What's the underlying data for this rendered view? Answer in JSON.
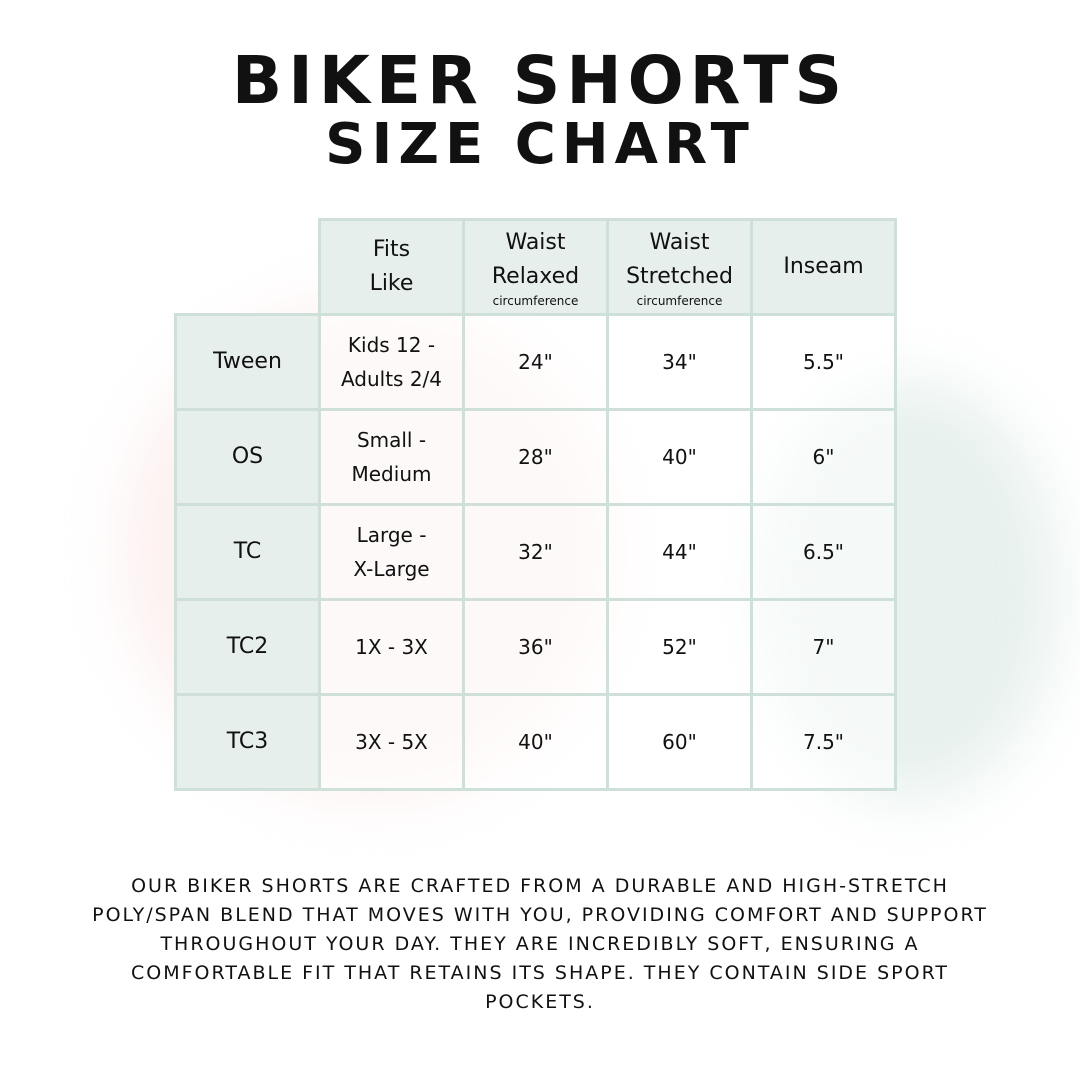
{
  "title": {
    "line1": "BIKER SHORTS",
    "line2": "SIZE CHART"
  },
  "table": {
    "headers": [
      {
        "line1": "Fits",
        "line2": "Like",
        "sub": ""
      },
      {
        "line1": "Waist",
        "line2": "Relaxed",
        "sub": "circumference"
      },
      {
        "line1": "Waist",
        "line2": "Stretched",
        "sub": "circumference"
      },
      {
        "line1": "Inseam",
        "line2": "",
        "sub": ""
      }
    ],
    "rows": [
      {
        "size": "Tween",
        "fits1": "Kids 12 -",
        "fits2": "Adults 2/4",
        "relaxed": "24\"",
        "stretched": "34\"",
        "inseam": "5.5\""
      },
      {
        "size": "OS",
        "fits1": "Small -",
        "fits2": "Medium",
        "relaxed": "28\"",
        "stretched": "40\"",
        "inseam": "6\""
      },
      {
        "size": "TC",
        "fits1": "Large -",
        "fits2": "X-Large",
        "relaxed": "32\"",
        "stretched": "44\"",
        "inseam": "6.5\""
      },
      {
        "size": "TC2",
        "fits1": "1X - 3X",
        "fits2": "",
        "relaxed": "36\"",
        "stretched": "52\"",
        "inseam": "7\""
      },
      {
        "size": "TC3",
        "fits1": "3X - 5X",
        "fits2": "",
        "relaxed": "40\"",
        "stretched": "60\"",
        "inseam": "7.5\""
      }
    ]
  },
  "description": "Our biker shorts are crafted from a durable and high-stretch poly/span blend that moves with you, providing comfort and support throughout your day. They are incredibly soft, ensuring a comfortable fit that retains its shape. They contain side sport pockets.",
  "colors": {
    "header_bg": "#e6efeb",
    "border": "#cfe0d8"
  }
}
